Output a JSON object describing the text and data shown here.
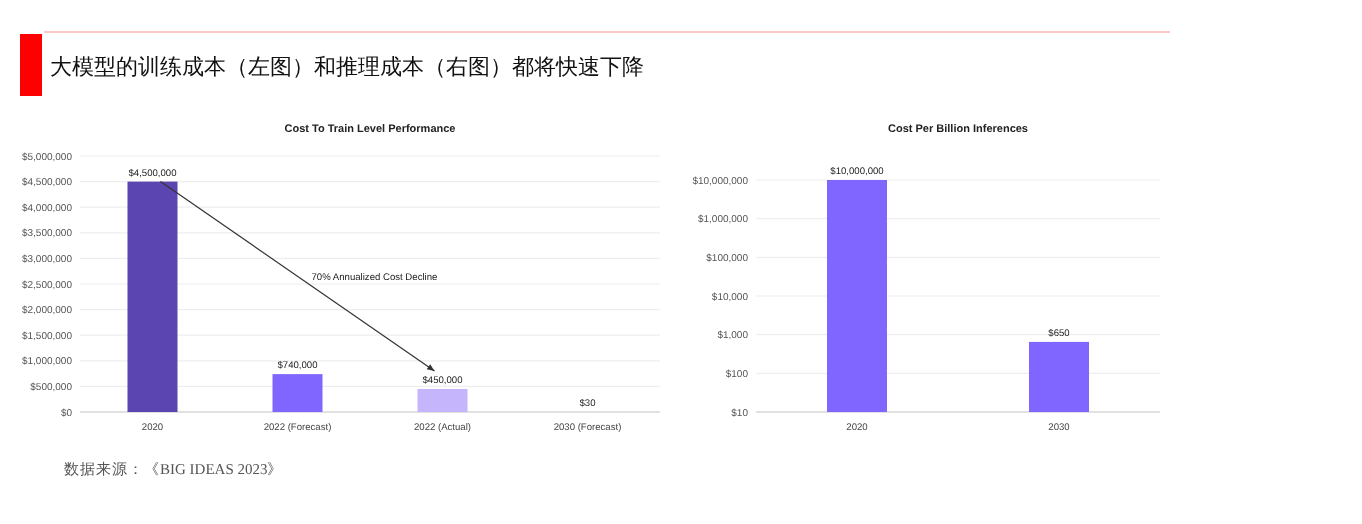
{
  "chart_data": [
    {
      "type": "bar",
      "title": "Cost To Train Level Performance",
      "categories": [
        "2020",
        "2022 (Forecast)",
        "2022 (Actual)",
        "2030 (Forecast)"
      ],
      "values": [
        4500000,
        740000,
        450000,
        30
      ],
      "colors": [
        "#5b45b0",
        "#8066ff",
        "#c4b5fd",
        "#8066ff"
      ],
      "value_labels": [
        "$4,500,000",
        "$740,000",
        "$450,000",
        "$30"
      ],
      "ylim": [
        0,
        5000000
      ],
      "yticks": [
        {
          "value": 0,
          "label": "$0"
        },
        {
          "value": 500000,
          "label": "$500,000"
        },
        {
          "value": 1000000,
          "label": "$1,000,000"
        },
        {
          "value": 1500000,
          "label": "$1,500,000"
        },
        {
          "value": 2000000,
          "label": "$2,000,000"
        },
        {
          "value": 2500000,
          "label": "$2,500,000"
        },
        {
          "value": 3000000,
          "label": "$3,000,000"
        },
        {
          "value": 3500000,
          "label": "$3,500,000"
        },
        {
          "value": 4000000,
          "label": "$4,000,000"
        },
        {
          "value": 4500000,
          "label": "$4,500,000"
        },
        {
          "value": 5000000,
          "label": "$5,000,000"
        }
      ],
      "grid": "y",
      "annotations": [
        "大模型的训练成本（左图）和推理成本（右图）都将快速下降",
        "70% Annualized Cost Decline",
        "数据来源：《BIG IDEAS 2023》"
      ]
    },
    {
      "type": "bar",
      "title": "Cost Per Billion Inferences",
      "categories": [
        "2020",
        "2030"
      ],
      "values": [
        10000000,
        650
      ],
      "colors": [
        "#8066ff",
        "#8066ff"
      ],
      "value_labels": [
        "$10,000,000",
        "$650"
      ],
      "log": "y",
      "ylim": [
        10,
        10000000
      ],
      "yticks": [
        {
          "value": 10,
          "label": "$10"
        },
        {
          "value": 100,
          "label": "$100"
        },
        {
          "value": 1000,
          "label": "$1,000"
        },
        {
          "value": 10000,
          "label": "$10,000"
        },
        {
          "value": 100000,
          "label": "$100,000"
        },
        {
          "value": 1000000,
          "label": "$1,000,000"
        },
        {
          "value": 10000000,
          "label": "$10,000,000"
        }
      ],
      "grid": "y"
    }
  ]
}
